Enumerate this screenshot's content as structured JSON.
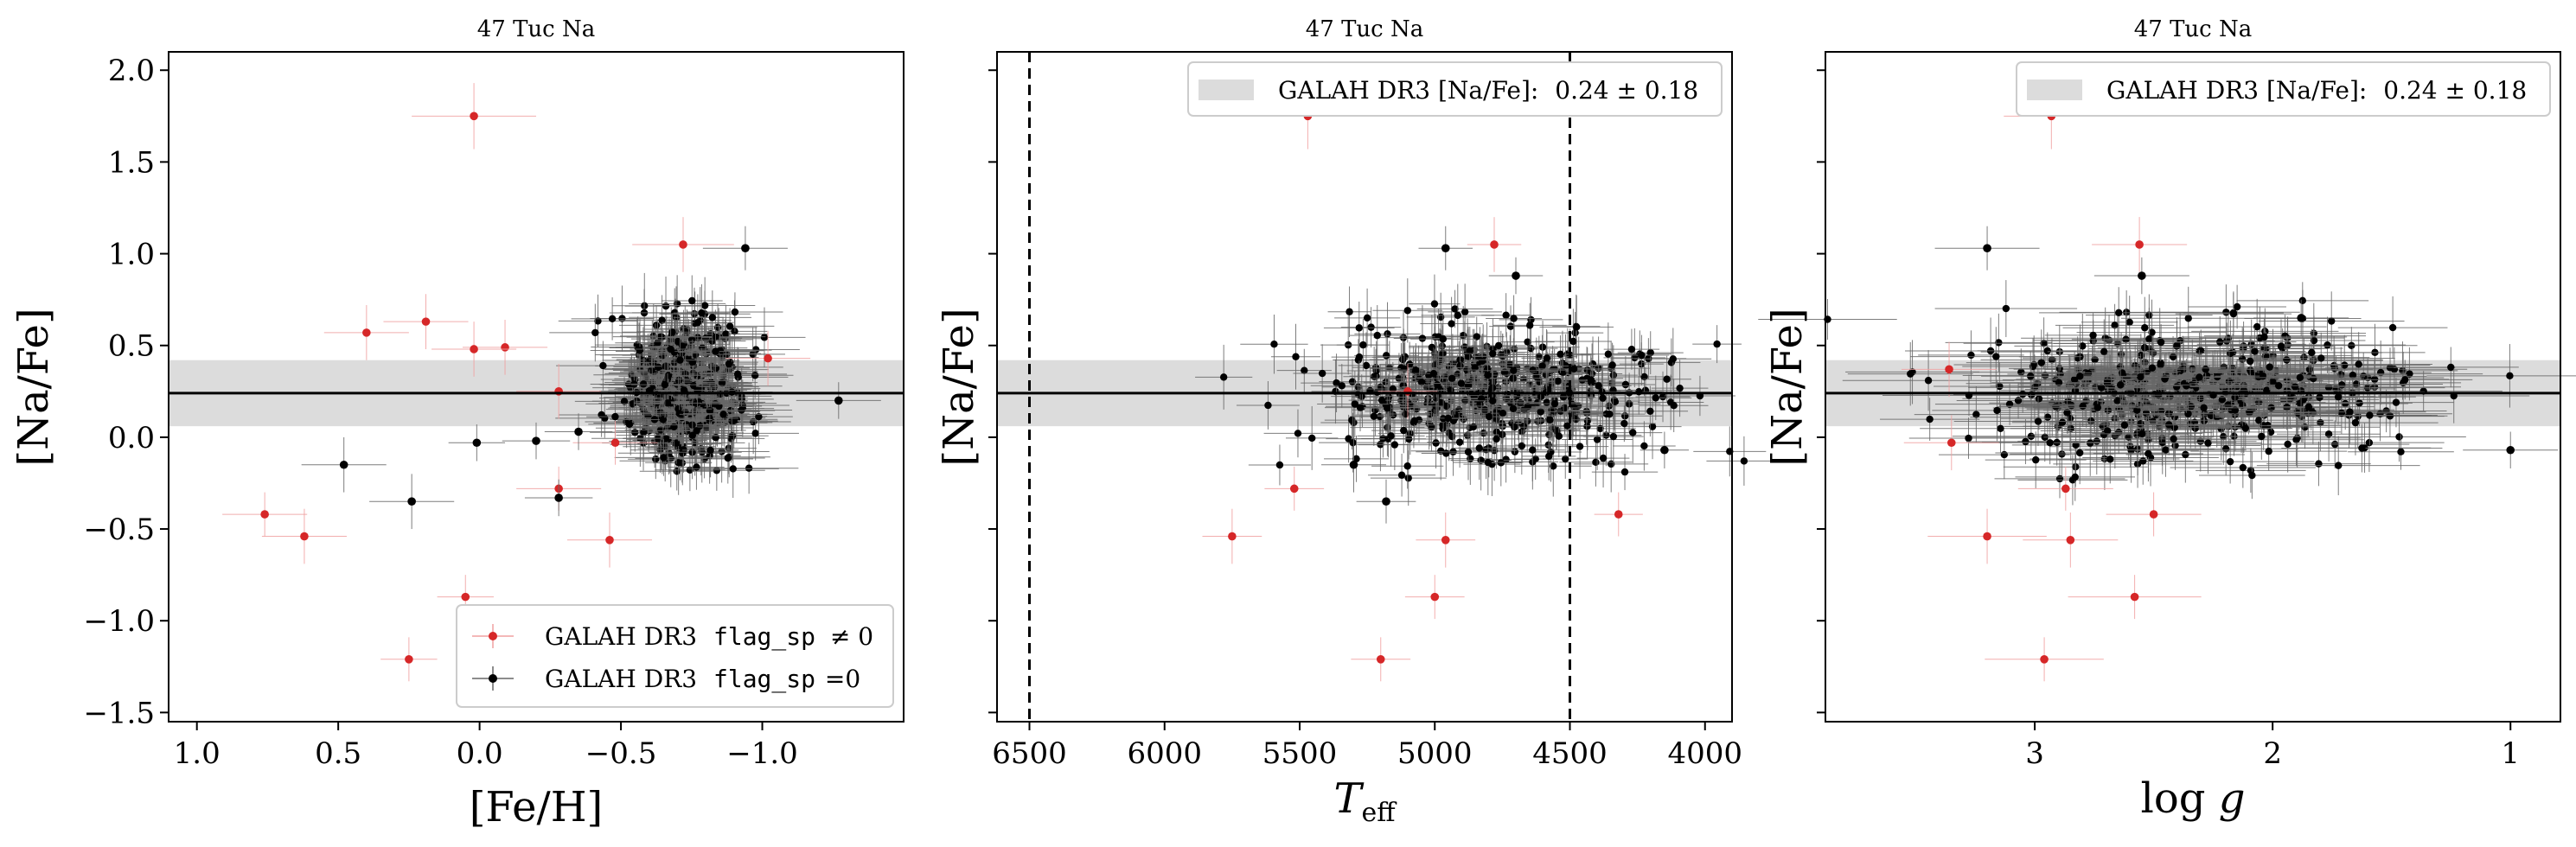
{
  "colors": {
    "flag_nonzero": "#d62728",
    "flag_zero": "#000000",
    "band": "#dcdcdc",
    "errorbar_nonzero": "#f0a0a0",
    "errorbar_zero": "#666666"
  },
  "chart_data": [
    {
      "type": "scatter",
      "title": "47 Tuc Na",
      "xlabel": "[Fe/H]",
      "ylabel": "[Na/Fe]",
      "xlim": [
        1.1,
        -1.5
      ],
      "ylim": [
        -1.55,
        2.1
      ],
      "x_inverted": true,
      "xticks": [
        1.0,
        0.5,
        0.0,
        -0.5,
        -1.0
      ],
      "xtick_labels": [
        "1.0",
        "0.5",
        "0.0",
        "−0.5",
        "−1.0"
      ],
      "yticks": [
        -1.5,
        -1.0,
        -0.5,
        0.0,
        0.5,
        1.0,
        1.5,
        2.0
      ],
      "ytick_labels": [
        "−1.5",
        "−1.0",
        "−0.5",
        "0.0",
        "0.5",
        "1.0",
        "1.5",
        "2.0"
      ],
      "reference_line": 0.24,
      "reference_band": [
        0.06,
        0.42
      ],
      "legend": {
        "position": "lower-right",
        "entries": [
          {
            "prefix": "GALAH DR3",
            "code": "flag_sp",
            "suffix": "≠ 0",
            "color_key": "flag_nonzero"
          },
          {
            "prefix": "GALAH DR3",
            "code": "flag_sp",
            "suffix": "=0",
            "color_key": "flag_zero"
          }
        ]
      },
      "series": [
        {
          "color_key": "flag_nonzero",
          "points": [
            {
              "x": 0.02,
              "y": 1.75,
              "xerr": 0.22,
              "yerr": 0.18
            },
            {
              "x": -0.72,
              "y": 1.05,
              "xerr": 0.18,
              "yerr": 0.15
            },
            {
              "x": 0.19,
              "y": 0.63,
              "xerr": 0.15,
              "yerr": 0.15
            },
            {
              "x": 0.4,
              "y": 0.57,
              "xerr": 0.15,
              "yerr": 0.15
            },
            {
              "x": -0.09,
              "y": 0.49,
              "xerr": 0.15,
              "yerr": 0.15
            },
            {
              "x": 0.02,
              "y": 0.48,
              "xerr": 0.15,
              "yerr": 0.15
            },
            {
              "x": -0.28,
              "y": 0.25,
              "xerr": 0.15,
              "yerr": 0.15
            },
            {
              "x": -1.02,
              "y": 0.43,
              "xerr": 0.15,
              "yerr": 0.15
            },
            {
              "x": -0.48,
              "y": -0.03,
              "xerr": 0.15,
              "yerr": 0.12
            },
            {
              "x": -0.28,
              "y": -0.28,
              "xerr": 0.15,
              "yerr": 0.12
            },
            {
              "x": 0.76,
              "y": -0.42,
              "xerr": 0.15,
              "yerr": 0.12
            },
            {
              "x": 0.62,
              "y": -0.54,
              "xerr": 0.15,
              "yerr": 0.15
            },
            {
              "x": -0.46,
              "y": -0.56,
              "xerr": 0.15,
              "yerr": 0.15
            },
            {
              "x": 0.05,
              "y": -0.87,
              "xerr": 0.1,
              "yerr": 0.12
            },
            {
              "x": 0.25,
              "y": -1.21,
              "xerr": 0.1,
              "yerr": 0.12
            }
          ]
        },
        {
          "color_key": "flag_zero",
          "points": [
            {
              "x": -0.94,
              "y": 1.03,
              "xerr": 0.15,
              "yerr": 0.12
            },
            {
              "x": -1.27,
              "y": 0.2,
              "xerr": 0.15,
              "yerr": 0.1
            },
            {
              "x": 0.48,
              "y": -0.15,
              "xerr": 0.15,
              "yerr": 0.15
            },
            {
              "x": 0.24,
              "y": -0.35,
              "xerr": 0.15,
              "yerr": 0.15
            },
            {
              "x": 0.01,
              "y": -0.03,
              "xerr": 0.1,
              "yerr": 0.1
            },
            {
              "x": -0.28,
              "y": -0.33,
              "xerr": 0.12,
              "yerr": 0.1
            },
            {
              "x": -0.35,
              "y": 0.03,
              "xerr": 0.12,
              "yerr": 0.1
            },
            {
              "x": -0.2,
              "y": -0.02,
              "xerr": 0.12,
              "yerr": 0.1
            }
          ]
        }
      ],
      "cluster": {
        "color_key": "flag_zero",
        "count": 520,
        "x_center": -0.72,
        "x_spread": 0.1,
        "y_center": 0.25,
        "y_spread": 0.2,
        "xerr": 0.14,
        "yerr": 0.14
      }
    },
    {
      "type": "scatter",
      "title": "47 Tuc Na",
      "xlabel": "T_eff",
      "ylabel": "[Na/Fe]",
      "xlim": [
        6620,
        3900
      ],
      "ylim": [
        -1.55,
        2.1
      ],
      "x_inverted": true,
      "xticks": [
        6500,
        6000,
        5500,
        5000,
        4500,
        4000
      ],
      "xtick_labels": [
        "6500",
        "6000",
        "5500",
        "5000",
        "4500",
        "4000"
      ],
      "yticks": [
        -1.5,
        -1.0,
        -0.5,
        0.0,
        0.5,
        1.0,
        1.5,
        2.0
      ],
      "reference_line": 0.24,
      "reference_band": [
        0.06,
        0.42
      ],
      "vertical_lines": [
        6500,
        4500
      ],
      "legend": {
        "position": "top-right",
        "entries": [
          {
            "prefix": "GALAH DR3 [Na/Fe]:",
            "value": "0.24 ± 0.18"
          }
        ]
      },
      "series": [
        {
          "color_key": "flag_nonzero",
          "points": [
            {
              "x": 5470,
              "y": 1.75,
              "xerr": 120,
              "yerr": 0.18
            },
            {
              "x": 4780,
              "y": 1.05,
              "xerr": 100,
              "yerr": 0.15
            },
            {
              "x": 5100,
              "y": 0.25,
              "xerr": 110,
              "yerr": 0.15
            },
            {
              "x": 5520,
              "y": -0.28,
              "xerr": 110,
              "yerr": 0.12
            },
            {
              "x": 5750,
              "y": -0.54,
              "xerr": 110,
              "yerr": 0.15
            },
            {
              "x": 4960,
              "y": -0.56,
              "xerr": 110,
              "yerr": 0.15
            },
            {
              "x": 4320,
              "y": -0.42,
              "xerr": 90,
              "yerr": 0.12
            },
            {
              "x": 5000,
              "y": -0.87,
              "xerr": 110,
              "yerr": 0.12
            },
            {
              "x": 5200,
              "y": -1.21,
              "xerr": 110,
              "yerr": 0.12
            }
          ]
        },
        {
          "color_key": "flag_zero",
          "points": [
            {
              "x": 4960,
              "y": 1.03,
              "xerr": 100,
              "yerr": 0.12
            },
            {
              "x": 4700,
              "y": 0.88,
              "xerr": 100,
              "yerr": 0.1
            },
            {
              "x": 5300,
              "y": -0.15,
              "xerr": 120,
              "yerr": 0.15
            },
            {
              "x": 5180,
              "y": -0.35,
              "xerr": 110,
              "yerr": 0.12
            },
            {
              "x": 4150,
              "y": -0.07,
              "xerr": 90,
              "yerr": 0.1
            }
          ]
        }
      ],
      "cluster": {
        "color_key": "flag_zero",
        "count": 520,
        "x_center": 4820,
        "x_spread": 300,
        "y_center": 0.25,
        "y_spread": 0.18,
        "xerr": 110,
        "yerr": 0.14
      }
    },
    {
      "type": "scatter",
      "title": "47 Tuc Na",
      "xlabel": "log g",
      "ylabel": "[Na/Fe]",
      "xlim": [
        3.88,
        0.79
      ],
      "ylim": [
        -1.55,
        2.1
      ],
      "x_inverted": true,
      "xticks": [
        3,
        2,
        1
      ],
      "xtick_labels": [
        "3",
        "2",
        "1"
      ],
      "yticks": [
        -1.5,
        -1.0,
        -0.5,
        0.0,
        0.5,
        1.0,
        1.5,
        2.0
      ],
      "reference_line": 0.24,
      "reference_band": [
        0.06,
        0.42
      ],
      "legend": {
        "position": "top-right",
        "entries": [
          {
            "prefix": "GALAH DR3 [Na/Fe]:",
            "value": "0.24 ± 0.18"
          }
        ]
      },
      "series": [
        {
          "color_key": "flag_nonzero",
          "points": [
            {
              "x": 2.93,
              "y": 1.75,
              "xerr": 0.2,
              "yerr": 0.18
            },
            {
              "x": 2.56,
              "y": 1.05,
              "xerr": 0.2,
              "yerr": 0.15
            },
            {
              "x": 3.36,
              "y": 0.37,
              "xerr": 0.2,
              "yerr": 0.15
            },
            {
              "x": 3.35,
              "y": -0.03,
              "xerr": 0.2,
              "yerr": 0.15
            },
            {
              "x": 2.87,
              "y": -0.28,
              "xerr": 0.2,
              "yerr": 0.12
            },
            {
              "x": 3.2,
              "y": -0.54,
              "xerr": 0.25,
              "yerr": 0.15
            },
            {
              "x": 2.85,
              "y": -0.56,
              "xerr": 0.2,
              "yerr": 0.15
            },
            {
              "x": 2.5,
              "y": -0.42,
              "xerr": 0.2,
              "yerr": 0.12
            },
            {
              "x": 2.58,
              "y": -0.87,
              "xerr": 0.28,
              "yerr": 0.12
            },
            {
              "x": 2.96,
              "y": -1.21,
              "xerr": 0.25,
              "yerr": 0.12
            }
          ]
        },
        {
          "color_key": "flag_zero",
          "points": [
            {
              "x": 3.2,
              "y": 1.03,
              "xerr": 0.22,
              "yerr": 0.12
            },
            {
              "x": 2.55,
              "y": 0.88,
              "xerr": 0.2,
              "yerr": 0.1
            },
            {
              "x": 1.88,
              "y": 0.65,
              "xerr": 0.2,
              "yerr": 0.1
            },
            {
              "x": 1.0,
              "y": -0.07,
              "xerr": 0.2,
              "yerr": 0.1
            }
          ]
        }
      ],
      "cluster": {
        "color_key": "flag_zero",
        "count": 520,
        "x_center": 2.35,
        "x_spread": 0.42,
        "y_center": 0.25,
        "y_spread": 0.18,
        "xerr": 0.28,
        "yerr": 0.14
      }
    }
  ]
}
